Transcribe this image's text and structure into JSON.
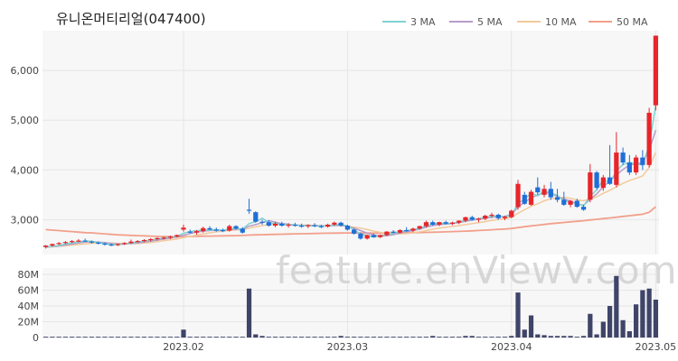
{
  "chart_data": [
    {
      "type": "candlestick",
      "title": "유니온머티리얼(047400)",
      "ylim": [
        2300,
        6800
      ],
      "yticks": [
        "3,000",
        "4,000",
        "5,000",
        "6,000"
      ],
      "ytick_values": [
        3000,
        4000,
        5000,
        6000
      ],
      "xticks": [
        "2023.02",
        "2023.03",
        "2023.04",
        "2023.05"
      ],
      "xtick_index": [
        21,
        46,
        71,
        93
      ],
      "legend": {
        "placement": "top-right",
        "items": [
          {
            "name": "3 MA",
            "color": "#7fd3d1"
          },
          {
            "name": "5 MA",
            "color": "#b79cc9"
          },
          {
            "name": "10 MA",
            "color": "#f3c99b"
          },
          {
            "name": "50 MA",
            "color": "#f2a08c"
          }
        ]
      },
      "up_color": "#e8252b",
      "down_color": "#1f6fd8",
      "watermark": "feature.enViewV.com",
      "candles": [
        [
          2450,
          2490,
          2420,
          2480
        ],
        [
          2480,
          2520,
          2460,
          2510
        ],
        [
          2510,
          2550,
          2490,
          2530
        ],
        [
          2530,
          2570,
          2510,
          2550
        ],
        [
          2550,
          2590,
          2530,
          2570
        ],
        [
          2570,
          2610,
          2550,
          2580
        ],
        [
          2580,
          2620,
          2560,
          2560
        ],
        [
          2560,
          2580,
          2520,
          2540
        ],
        [
          2540,
          2560,
          2500,
          2520
        ],
        [
          2520,
          2540,
          2480,
          2500
        ],
        [
          2500,
          2520,
          2470,
          2490
        ],
        [
          2490,
          2520,
          2470,
          2510
        ],
        [
          2510,
          2550,
          2490,
          2530
        ],
        [
          2530,
          2600,
          2510,
          2560
        ],
        [
          2560,
          2590,
          2540,
          2570
        ],
        [
          2570,
          2610,
          2550,
          2590
        ],
        [
          2590,
          2630,
          2560,
          2610
        ],
        [
          2610,
          2650,
          2580,
          2630
        ],
        [
          2630,
          2660,
          2600,
          2640
        ],
        [
          2640,
          2680,
          2610,
          2660
        ],
        [
          2660,
          2700,
          2640,
          2690
        ],
        [
          2800,
          2900,
          2760,
          2840
        ],
        [
          2760,
          2800,
          2720,
          2740
        ],
        [
          2740,
          2790,
          2700,
          2770
        ],
        [
          2770,
          2860,
          2740,
          2830
        ],
        [
          2830,
          2870,
          2790,
          2800
        ],
        [
          2800,
          2840,
          2760,
          2790
        ],
        [
          2790,
          2820,
          2750,
          2780
        ],
        [
          2780,
          2900,
          2760,
          2870
        ],
        [
          2870,
          2890,
          2800,
          2820
        ],
        [
          2820,
          2850,
          2720,
          2740
        ],
        [
          3200,
          3420,
          3120,
          3180
        ],
        [
          3150,
          3170,
          2940,
          2960
        ],
        [
          2960,
          3000,
          2900,
          2950
        ],
        [
          2950,
          2990,
          2860,
          2880
        ],
        [
          2880,
          2960,
          2850,
          2920
        ],
        [
          2920,
          2960,
          2860,
          2880
        ],
        [
          2880,
          2930,
          2840,
          2900
        ],
        [
          2900,
          2940,
          2860,
          2880
        ],
        [
          2880,
          2920,
          2840,
          2870
        ],
        [
          2870,
          2910,
          2830,
          2890
        ],
        [
          2890,
          2930,
          2850,
          2870
        ],
        [
          2870,
          2900,
          2830,
          2860
        ],
        [
          2860,
          2920,
          2840,
          2900
        ],
        [
          2900,
          2960,
          2880,
          2940
        ],
        [
          2940,
          2960,
          2860,
          2880
        ],
        [
          2880,
          2900,
          2780,
          2800
        ],
        [
          2800,
          2820,
          2700,
          2720
        ],
        [
          2720,
          2740,
          2600,
          2620
        ],
        [
          2620,
          2700,
          2600,
          2690
        ],
        [
          2690,
          2720,
          2640,
          2650
        ],
        [
          2650,
          2700,
          2630,
          2690
        ],
        [
          2690,
          2770,
          2670,
          2760
        ],
        [
          2760,
          2790,
          2720,
          2740
        ],
        [
          2740,
          2810,
          2720,
          2790
        ],
        [
          2790,
          2850,
          2760,
          2780
        ],
        [
          2780,
          2840,
          2750,
          2820
        ],
        [
          2820,
          2880,
          2800,
          2870
        ],
        [
          2870,
          2980,
          2840,
          2950
        ],
        [
          2950,
          2980,
          2880,
          2900
        ],
        [
          2900,
          2960,
          2870,
          2950
        ],
        [
          2950,
          2980,
          2900,
          2920
        ],
        [
          2920,
          2960,
          2890,
          2940
        ],
        [
          2940,
          2990,
          2910,
          2980
        ],
        [
          2980,
          3060,
          2950,
          3050
        ],
        [
          3050,
          3080,
          2980,
          3000
        ],
        [
          3000,
          3040,
          2950,
          3020
        ],
        [
          3020,
          3100,
          2990,
          3080
        ],
        [
          3080,
          3140,
          3040,
          3100
        ],
        [
          3100,
          3120,
          3000,
          3030
        ],
        [
          3030,
          3080,
          2990,
          3060
        ],
        [
          3050,
          3200,
          3030,
          3180
        ],
        [
          3250,
          3800,
          3200,
          3720
        ],
        [
          3500,
          3560,
          3300,
          3320
        ],
        [
          3300,
          3600,
          3280,
          3560
        ],
        [
          3650,
          3850,
          3500,
          3550
        ],
        [
          3500,
          3700,
          3450,
          3620
        ],
        [
          3620,
          3760,
          3400,
          3450
        ],
        [
          3450,
          3620,
          3350,
          3400
        ],
        [
          3400,
          3560,
          3280,
          3300
        ],
        [
          3300,
          3400,
          3250,
          3380
        ],
        [
          3380,
          3420,
          3240,
          3260
        ],
        [
          3260,
          3300,
          3180,
          3200
        ],
        [
          3400,
          4120,
          3350,
          3950
        ],
        [
          3950,
          3980,
          3600,
          3640
        ],
        [
          3640,
          3900,
          3580,
          3850
        ],
        [
          3850,
          4500,
          3700,
          3720
        ],
        [
          3700,
          4760,
          3650,
          4350
        ],
        [
          4350,
          4450,
          4100,
          4150
        ],
        [
          4150,
          4300,
          3900,
          3950
        ],
        [
          3950,
          4300,
          3900,
          4250
        ],
        [
          4250,
          4400,
          4000,
          4100
        ],
        [
          4100,
          5250,
          4050,
          5150
        ],
        [
          5300,
          6700,
          5200,
          6700
        ]
      ],
      "ma3": [
        2450,
        2465,
        2480,
        2510,
        2530,
        2550,
        2570,
        2565,
        2540,
        2520,
        2500,
        2500,
        2510,
        2530,
        2550,
        2570,
        2590,
        2610,
        2630,
        2650,
        2665,
        2730,
        2760,
        2780,
        2790,
        2790,
        2800,
        2790,
        2810,
        2820,
        2810,
        2920,
        2960,
        3030,
        2940,
        2920,
        2900,
        2900,
        2890,
        2880,
        2880,
        2875,
        2870,
        2875,
        2890,
        2910,
        2870,
        2800,
        2710,
        2680,
        2650,
        2680,
        2700,
        2730,
        2760,
        2780,
        2800,
        2820,
        2880,
        2910,
        2930,
        2920,
        2930,
        2950,
        2990,
        3010,
        3020,
        3050,
        3070,
        3070,
        3060,
        3090,
        3320,
        3420,
        3530,
        3480,
        3580,
        3540,
        3490,
        3380,
        3360,
        3320,
        3280,
        3470,
        3600,
        3810,
        3740,
        3980,
        4110,
        4150,
        4120,
        4100,
        4500,
        5300
      ],
      "ma5": [
        2450,
        2460,
        2470,
        2490,
        2510,
        2530,
        2550,
        2560,
        2550,
        2540,
        2520,
        2510,
        2510,
        2520,
        2530,
        2550,
        2570,
        2590,
        2610,
        2630,
        2650,
        2690,
        2720,
        2750,
        2770,
        2780,
        2790,
        2790,
        2800,
        2810,
        2810,
        2870,
        2900,
        2940,
        2980,
        2950,
        2920,
        2910,
        2890,
        2890,
        2880,
        2880,
        2875,
        2875,
        2880,
        2890,
        2870,
        2830,
        2780,
        2730,
        2690,
        2670,
        2680,
        2700,
        2730,
        2760,
        2780,
        2810,
        2850,
        2880,
        2900,
        2910,
        2920,
        2940,
        2970,
        2990,
        3010,
        3030,
        3050,
        3060,
        3070,
        3100,
        3260,
        3350,
        3440,
        3500,
        3540,
        3540,
        3460,
        3420,
        3370,
        3320,
        3290,
        3410,
        3520,
        3660,
        3780,
        3900,
        4010,
        4100,
        4120,
        4150,
        4400,
        4800
      ],
      "ma10": [
        2450,
        2455,
        2465,
        2475,
        2490,
        2500,
        2515,
        2525,
        2530,
        2530,
        2530,
        2525,
        2520,
        2520,
        2520,
        2530,
        2540,
        2560,
        2575,
        2595,
        2610,
        2640,
        2665,
        2690,
        2715,
        2735,
        2755,
        2770,
        2785,
        2795,
        2800,
        2830,
        2855,
        2880,
        2905,
        2910,
        2905,
        2900,
        2895,
        2890,
        2890,
        2885,
        2880,
        2880,
        2880,
        2880,
        2870,
        2850,
        2830,
        2800,
        2770,
        2745,
        2730,
        2720,
        2715,
        2720,
        2735,
        2755,
        2780,
        2810,
        2830,
        2850,
        2865,
        2880,
        2900,
        2920,
        2940,
        2960,
        2985,
        3005,
        3020,
        3050,
        3130,
        3200,
        3270,
        3320,
        3380,
        3420,
        3440,
        3450,
        3430,
        3400,
        3380,
        3420,
        3460,
        3530,
        3590,
        3660,
        3730,
        3790,
        3830,
        3880,
        4050,
        4350
      ],
      "ma50": [
        2800,
        2790,
        2780,
        2770,
        2760,
        2750,
        2740,
        2735,
        2725,
        2715,
        2705,
        2695,
        2690,
        2685,
        2680,
        2675,
        2670,
        2665,
        2662,
        2660,
        2658,
        2660,
        2662,
        2665,
        2668,
        2670,
        2672,
        2675,
        2677,
        2680,
        2682,
        2690,
        2695,
        2698,
        2702,
        2705,
        2708,
        2712,
        2715,
        2718,
        2720,
        2723,
        2726,
        2728,
        2730,
        2732,
        2733,
        2733,
        2732,
        2731,
        2730,
        2730,
        2731,
        2733,
        2735,
        2737,
        2739,
        2741,
        2745,
        2749,
        2752,
        2756,
        2760,
        2765,
        2770,
        2776,
        2782,
        2790,
        2798,
        2806,
        2812,
        2822,
        2840,
        2858,
        2875,
        2890,
        2905,
        2920,
        2932,
        2945,
        2957,
        2968,
        2978,
        2995,
        3008,
        3022,
        3035,
        3050,
        3065,
        3080,
        3095,
        3110,
        3150,
        3260
      ],
      "volume_panel": {
        "ylim": [
          0,
          80
        ],
        "yticks": [
          "0",
          "20M",
          "40M",
          "60M",
          "80M"
        ],
        "ytick_values": [
          0,
          20,
          40,
          60,
          80
        ],
        "unit": "M",
        "color": "#3f4469",
        "values": [
          1,
          1,
          1,
          1,
          1,
          1,
          1,
          1,
          1,
          1,
          1,
          1,
          1,
          1,
          1,
          1,
          1,
          1,
          1,
          1,
          1,
          10,
          1,
          1,
          1,
          1,
          1,
          1,
          1,
          1,
          1,
          62,
          4,
          2,
          1,
          1,
          1,
          1,
          1,
          1,
          1,
          1,
          1,
          1,
          1,
          2,
          1,
          1,
          1,
          1,
          1,
          1,
          1,
          1,
          1,
          1,
          1,
          1,
          1,
          2,
          1,
          1,
          1,
          1,
          2,
          2,
          1,
          1,
          1,
          1,
          1,
          2,
          57,
          10,
          28,
          4,
          3,
          2,
          2,
          2,
          2,
          1,
          2,
          30,
          4,
          20,
          40,
          78,
          22,
          8,
          42,
          60,
          62,
          48
        ]
      }
    }
  ]
}
